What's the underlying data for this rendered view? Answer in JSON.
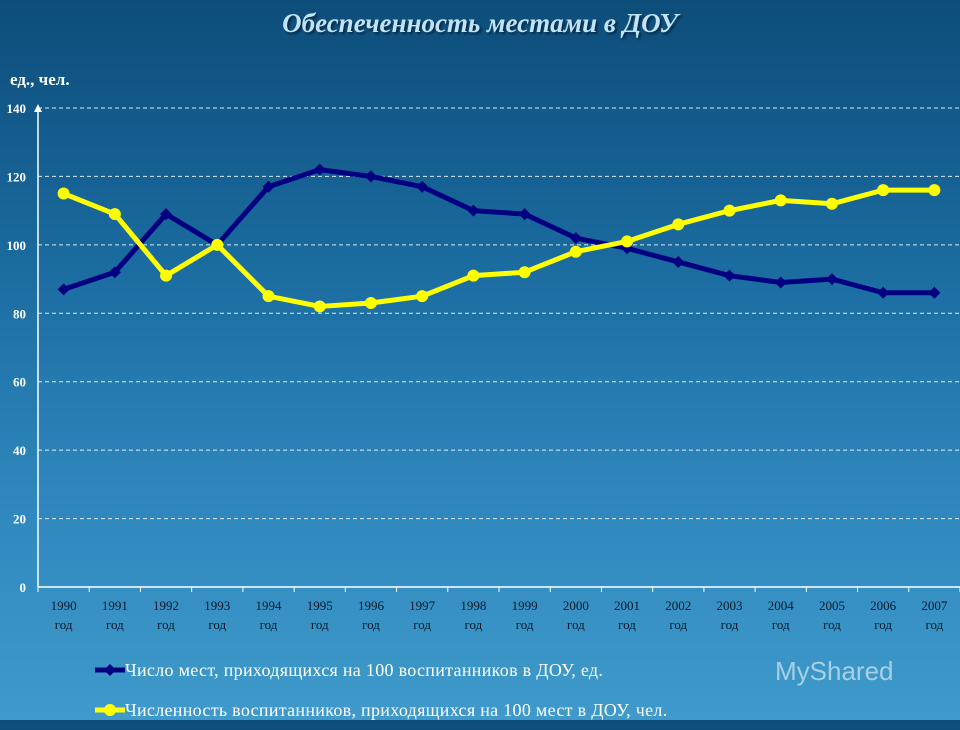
{
  "title": "Обеспеченность местами в ДОУ",
  "unit_label": "ед., чел.",
  "watermark": "MyShared",
  "chart_data": {
    "type": "line",
    "categories": [
      "1990 год",
      "1991 год",
      "1992 год",
      "1993 год",
      "1994 год",
      "1995 год",
      "1996 год",
      "1997 год",
      "1998 год",
      "1999 год",
      "2000 год",
      "2001 год",
      "2002 год",
      "2003 год",
      "2004 год",
      "2005 год",
      "2006 год",
      "2007 год"
    ],
    "x_top": [
      "1990",
      "1991",
      "1992",
      "1993",
      "1994",
      "1995",
      "1996",
      "1997",
      "1998",
      "1999",
      "2000",
      "2001",
      "2002",
      "2003",
      "2004",
      "2005",
      "2006",
      "2007"
    ],
    "x_bottom": "год",
    "ylim": [
      0,
      140
    ],
    "yticks": [
      0,
      20,
      40,
      60,
      80,
      100,
      120,
      140
    ],
    "grid": true,
    "legend_position": "bottom",
    "series": [
      {
        "name": "Число мест, приходящихся на 100 воспитанников в ДОУ,  ед.",
        "color": "#000080",
        "marker": "diamond",
        "values": [
          87,
          92,
          109,
          100,
          117,
          122,
          120,
          117,
          110,
          109,
          102,
          99,
          95,
          91,
          89,
          90,
          86,
          86
        ]
      },
      {
        "name": "Численность воспитанников, приходящихся на 100 мест в ДОУ,  чел.",
        "color": "#ffff00",
        "marker": "circle",
        "values": [
          115,
          109,
          91,
          100,
          85,
          82,
          83,
          85,
          91,
          92,
          98,
          101,
          106,
          110,
          113,
          112,
          116,
          116
        ]
      }
    ]
  }
}
